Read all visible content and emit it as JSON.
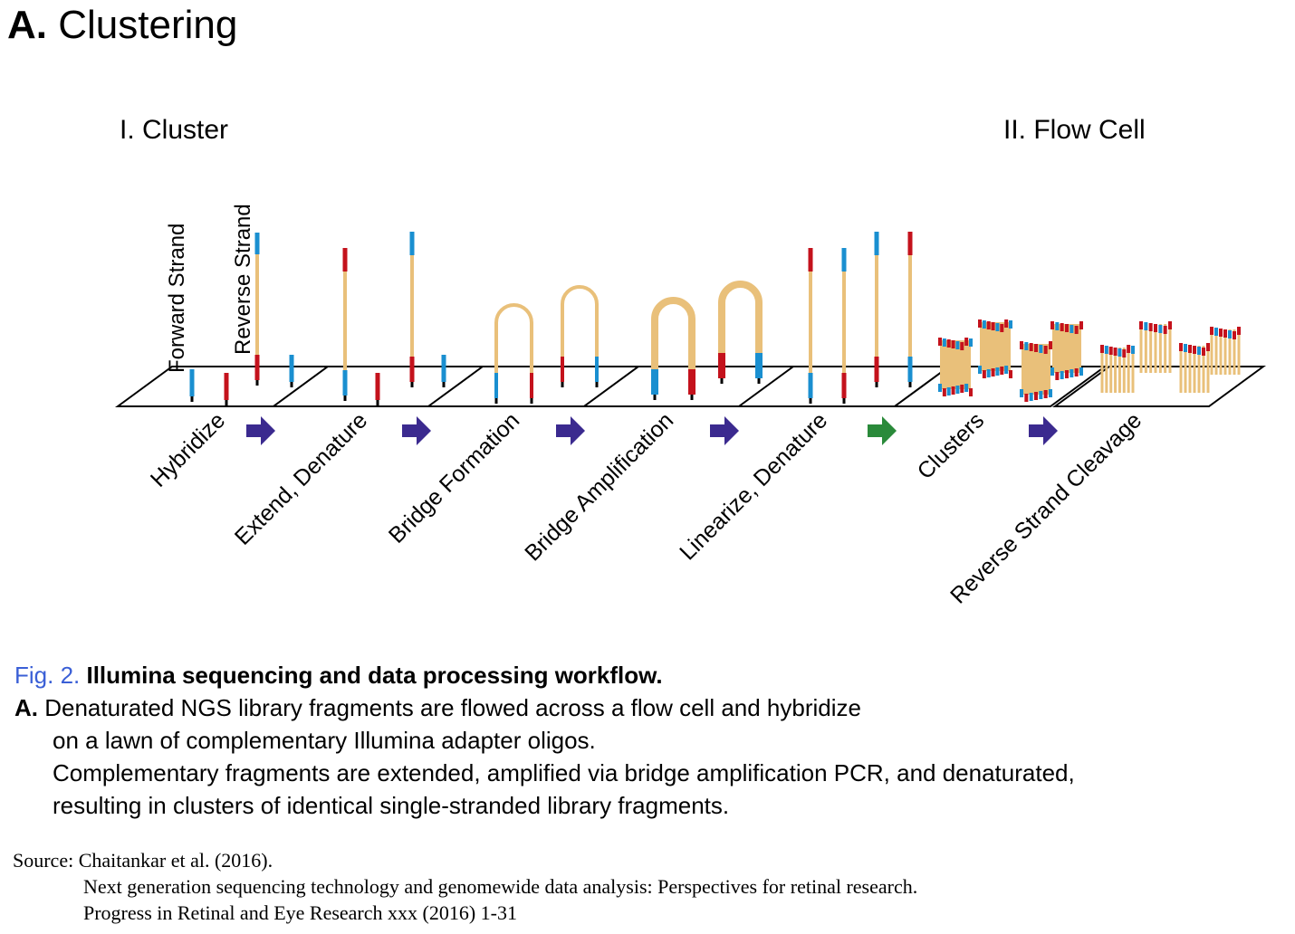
{
  "panel": {
    "letter": "A.",
    "title": "Clustering"
  },
  "sections": {
    "cluster": "I. Cluster",
    "flow_cell": "II. Flow Cell"
  },
  "strand_labels": {
    "forward": "Forward Strand",
    "reverse": "Reverse Strand"
  },
  "steps": [
    "Hybridize",
    "Extend, Denature",
    "Bridge Formation",
    "Bridge Amplification",
    "Linearize, Denature",
    "Clusters",
    "Reverse Strand Cleavage"
  ],
  "caption": {
    "fig_label": "Fig. 2.",
    "fig_title": "Illumina sequencing and data processing workflow.",
    "part_label": "A.",
    "lines": [
      "Denaturated NGS library fragments are flowed across a flow cell and hybridize",
      "on a lawn of complementary Illumina adapter oligos.",
      "Complementary fragments are extended, amplified via bridge amplification PCR, and denaturated,",
      "resulting in clusters of identical single-stranded library fragments."
    ]
  },
  "source": {
    "prefix": "Source: Chaitankar et al. (2016).",
    "title": "Next generation sequencing technology and genomewide data analysis: Perspectives for retinal research.",
    "journal": "Progress in Retinal and Eye Research xxx (2016) 1-31"
  },
  "colors": {
    "strand": "#e9c07a",
    "adapter_red": "#c4121c",
    "adapter_blue": "#1a8fd0",
    "arrow_purple": "#3b2a8f",
    "arrow_green": "#2a8a3a",
    "caption_blue": "#3a5fd6"
  }
}
